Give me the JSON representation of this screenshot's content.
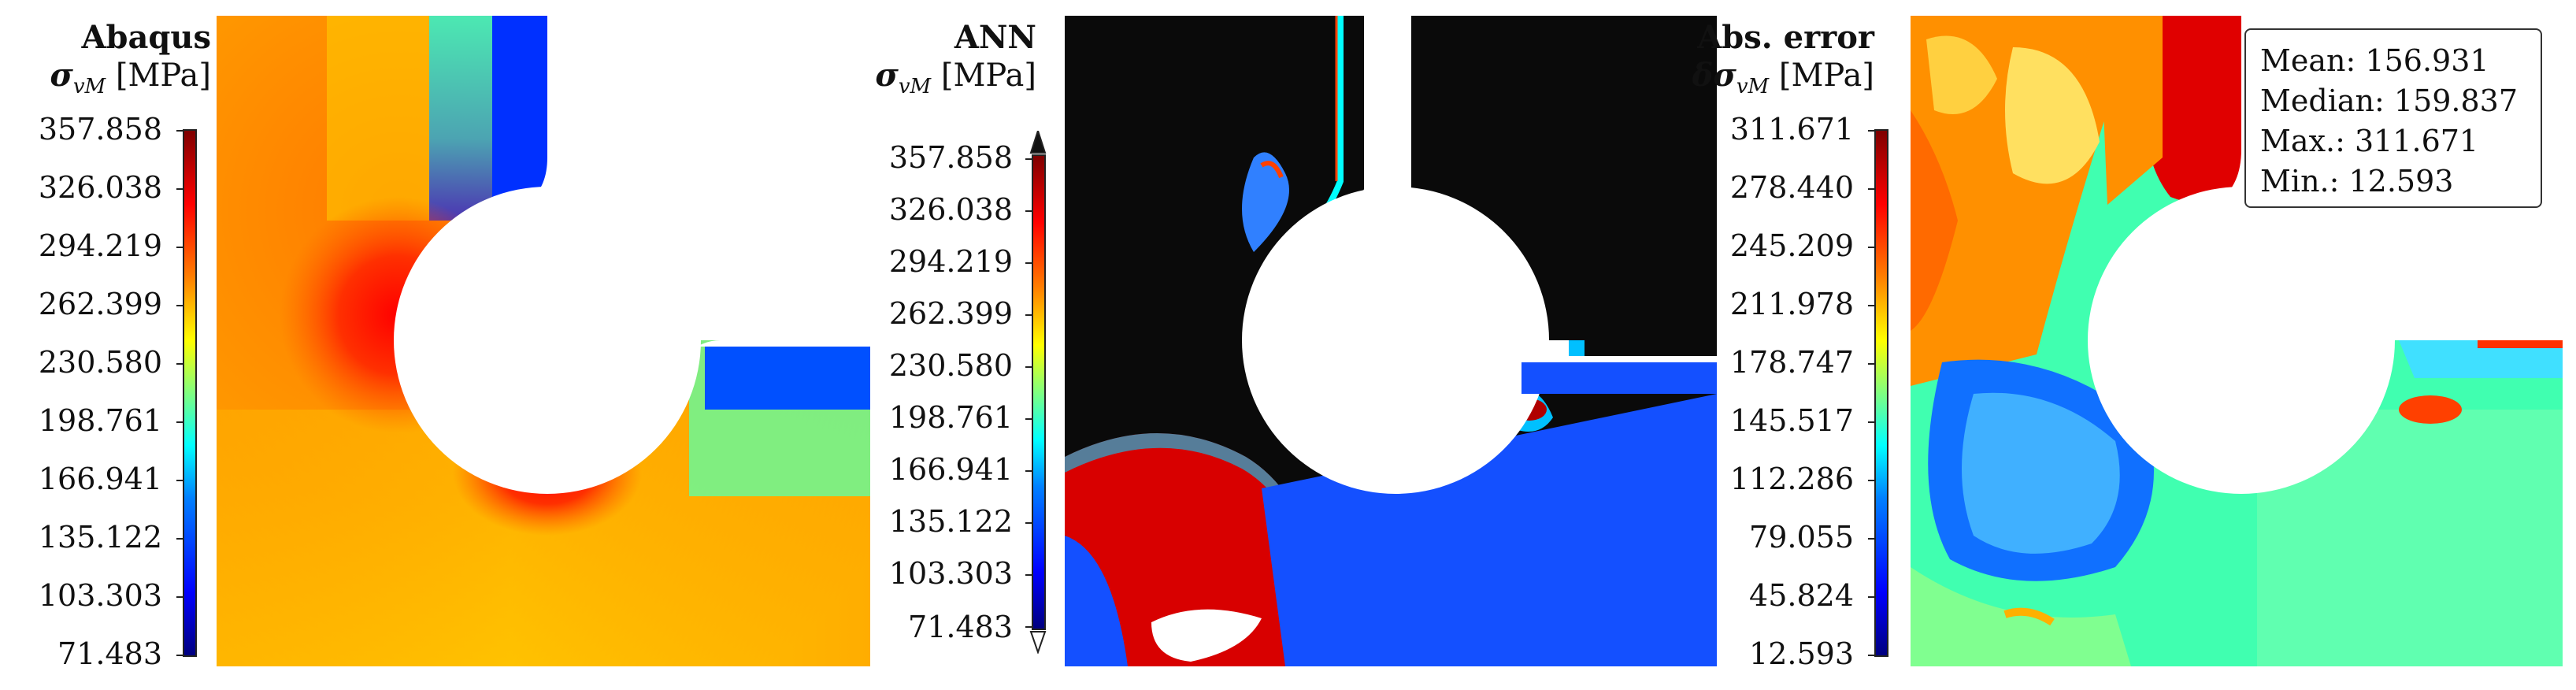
{
  "panels": [
    {
      "title": "Abaqus",
      "symbol": "σ",
      "symbol_sub": "vM",
      "unit": "[MPa]",
      "colormap": "jet",
      "ticks": [
        "357.858",
        "326.038",
        "294.219",
        "262.399",
        "230.580",
        "198.761",
        "166.941",
        "135.122",
        "103.303",
        "71.483"
      ]
    },
    {
      "title": "ANN",
      "symbol": "σ",
      "symbol_sub": "vM",
      "unit": "[MPa]",
      "colormap": "jet",
      "ticks": [
        "357.858",
        "326.038",
        "294.219",
        "262.399",
        "230.580",
        "198.761",
        "166.941",
        "135.122",
        "103.303",
        "71.483"
      ]
    },
    {
      "title": "Abs. error",
      "symbol": "δσ",
      "symbol_sub": "vM",
      "unit": "[MPa]",
      "colormap": "jet",
      "ticks": [
        "311.671",
        "278.440",
        "245.209",
        "211.978",
        "178.747",
        "145.517",
        "112.286",
        "79.055",
        "45.824",
        "12.593"
      ]
    }
  ],
  "stats": {
    "mean": "Mean: 156.931",
    "median": "Median: 159.837",
    "max": "Max.: 311.671",
    "min": "Min.: 12.593"
  }
}
